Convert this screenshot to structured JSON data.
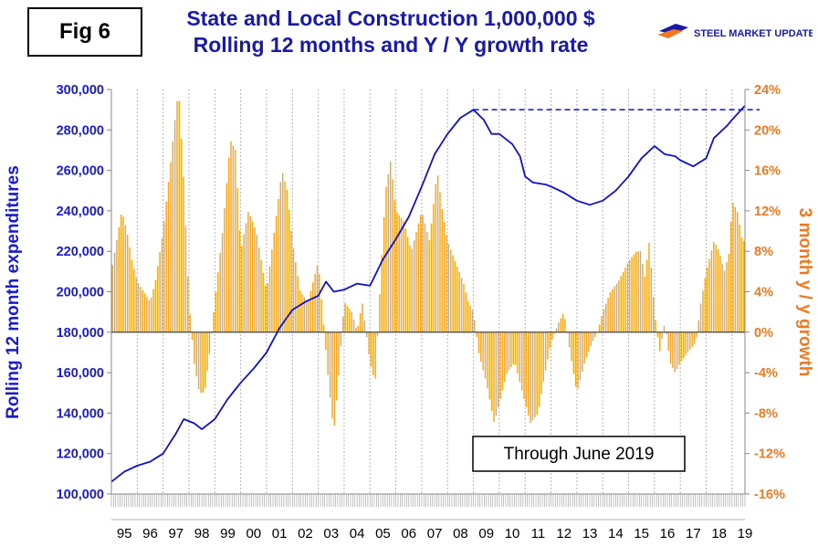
{
  "figure": {
    "label": "Fig 6",
    "title_line1": "State and Local Construction 1,000,000 $",
    "title_line2": "Rolling 12 months and Y / Y growth rate",
    "logo_text": "STEEL MARKET UPDATE",
    "annotation": "Through June 2019"
  },
  "colors": {
    "line": "#1010c8",
    "bars": "#f5a623",
    "left_axis_text": "#1a1ad0",
    "right_axis_text": "#f07820",
    "grid": "#b5b5b5",
    "reference_line": "#1010c8"
  },
  "chart_data": {
    "type": "bar+line",
    "title": "State and Local Construction 1,000,000 $ — Rolling 12 months and Y / Y growth rate",
    "ylabel_left": "Rolling 12 month expenditures",
    "ylabel_right": "3 month y / y growth",
    "ylim_left": [
      100000,
      300000
    ],
    "ylim_right": [
      -16,
      24
    ],
    "yticks_left": [
      "300,000",
      "280,000",
      "260,000",
      "240,000",
      "220,000",
      "200,000",
      "180,000",
      "160,000",
      "140,000",
      "120,000",
      "100,000"
    ],
    "yticks_right": [
      "24%",
      "20%",
      "16%",
      "12%",
      "8%",
      "4%",
      "0%",
      "-4%",
      "-8%",
      "-12%",
      "-16%"
    ],
    "x_range_months": [
      1995.0,
      2019.5
    ],
    "x_tick_labels": [
      "95",
      "96",
      "97",
      "98",
      "99",
      "00",
      "01",
      "02",
      "03",
      "04",
      "05",
      "06",
      "07",
      "08",
      "09",
      "10",
      "11",
      "12",
      "13",
      "14",
      "15",
      "16",
      "17",
      "18",
      "19"
    ],
    "reference_line": {
      "value": 290000,
      "from_year": 2009.0,
      "to_year": 2019.5,
      "style": "dashed"
    },
    "series": [
      {
        "name": "Rolling 12 month expenditures",
        "axis": "left",
        "kind": "line",
        "points": [
          [
            1995.0,
            106000
          ],
          [
            1995.5,
            111000
          ],
          [
            1996.0,
            114000
          ],
          [
            1996.5,
            116000
          ],
          [
            1997.0,
            120000
          ],
          [
            1997.5,
            130000
          ],
          [
            1997.8,
            137000
          ],
          [
            1998.2,
            135000
          ],
          [
            1998.5,
            132000
          ],
          [
            1999.0,
            137000
          ],
          [
            1999.5,
            147000
          ],
          [
            2000.0,
            155000
          ],
          [
            2000.5,
            162000
          ],
          [
            2001.0,
            170000
          ],
          [
            2001.5,
            182000
          ],
          [
            2002.0,
            191000
          ],
          [
            2002.5,
            195000
          ],
          [
            2003.0,
            198000
          ],
          [
            2003.3,
            205000
          ],
          [
            2003.6,
            200000
          ],
          [
            2004.0,
            201000
          ],
          [
            2004.5,
            204000
          ],
          [
            2005.0,
            203000
          ],
          [
            2005.5,
            216000
          ],
          [
            2006.0,
            226000
          ],
          [
            2006.5,
            237000
          ],
          [
            2007.0,
            252000
          ],
          [
            2007.5,
            268000
          ],
          [
            2008.0,
            278000
          ],
          [
            2008.5,
            286000
          ],
          [
            2009.0,
            290000
          ],
          [
            2009.4,
            285000
          ],
          [
            2009.7,
            278000
          ],
          [
            2010.0,
            278000
          ],
          [
            2010.5,
            273000
          ],
          [
            2010.8,
            267000
          ],
          [
            2011.0,
            257000
          ],
          [
            2011.3,
            254000
          ],
          [
            2011.8,
            253000
          ],
          [
            2012.0,
            252000
          ],
          [
            2012.5,
            249000
          ],
          [
            2013.0,
            245000
          ],
          [
            2013.5,
            243000
          ],
          [
            2014.0,
            245000
          ],
          [
            2014.5,
            250000
          ],
          [
            2015.0,
            257000
          ],
          [
            2015.5,
            266000
          ],
          [
            2016.0,
            272000
          ],
          [
            2016.4,
            268000
          ],
          [
            2016.8,
            267000
          ],
          [
            2017.0,
            265000
          ],
          [
            2017.5,
            262000
          ],
          [
            2018.0,
            266000
          ],
          [
            2018.3,
            276000
          ],
          [
            2018.8,
            282000
          ],
          [
            2019.0,
            285000
          ],
          [
            2019.5,
            292000
          ]
        ]
      },
      {
        "name": "3 month y / y growth",
        "axis": "right",
        "kind": "bar",
        "points": [
          [
            1995.0,
            6
          ],
          [
            1995.4,
            12
          ],
          [
            1995.6,
            10
          ],
          [
            1995.8,
            7
          ],
          [
            1996.0,
            5
          ],
          [
            1996.5,
            3
          ],
          [
            1996.7,
            5
          ],
          [
            1997.0,
            10
          ],
          [
            1997.3,
            17
          ],
          [
            1997.5,
            22
          ],
          [
            1997.6,
            24
          ],
          [
            1997.8,
            15
          ],
          [
            1998.0,
            3
          ],
          [
            1998.2,
            -3
          ],
          [
            1998.4,
            -6
          ],
          [
            1998.6,
            -6
          ],
          [
            1998.8,
            -2
          ],
          [
            1999.0,
            3
          ],
          [
            1999.3,
            10
          ],
          [
            1999.6,
            19
          ],
          [
            1999.8,
            18
          ],
          [
            2000.0,
            8
          ],
          [
            2000.3,
            12
          ],
          [
            2000.6,
            10
          ],
          [
            2000.8,
            7
          ],
          [
            2001.0,
            4
          ],
          [
            2001.3,
            10
          ],
          [
            2001.6,
            16
          ],
          [
            2001.8,
            14
          ],
          [
            2002.0,
            9
          ],
          [
            2002.3,
            4
          ],
          [
            2002.6,
            3
          ],
          [
            2003.0,
            7
          ],
          [
            2003.2,
            1
          ],
          [
            2003.4,
            -5
          ],
          [
            2003.6,
            -10
          ],
          [
            2003.8,
            -4
          ],
          [
            2004.0,
            3
          ],
          [
            2004.3,
            2
          ],
          [
            2004.5,
            0
          ],
          [
            2004.7,
            3
          ],
          [
            2005.0,
            -3
          ],
          [
            2005.2,
            -5
          ],
          [
            2005.4,
            5
          ],
          [
            2005.6,
            14
          ],
          [
            2005.8,
            17
          ],
          [
            2006.0,
            12
          ],
          [
            2006.3,
            11
          ],
          [
            2006.6,
            8
          ],
          [
            2006.8,
            10
          ],
          [
            2007.0,
            12
          ],
          [
            2007.3,
            9
          ],
          [
            2007.6,
            16
          ],
          [
            2007.8,
            12
          ],
          [
            2008.0,
            9
          ],
          [
            2008.3,
            7
          ],
          [
            2008.6,
            5
          ],
          [
            2008.8,
            3
          ],
          [
            2009.0,
            2
          ],
          [
            2009.2,
            -2
          ],
          [
            2009.5,
            -5
          ],
          [
            2009.8,
            -9
          ],
          [
            2010.0,
            -7
          ],
          [
            2010.3,
            -4
          ],
          [
            2010.6,
            -3
          ],
          [
            2010.8,
            -5
          ],
          [
            2011.0,
            -7
          ],
          [
            2011.2,
            -9
          ],
          [
            2011.5,
            -8
          ],
          [
            2011.7,
            -5
          ],
          [
            2012.0,
            -1
          ],
          [
            2012.3,
            1
          ],
          [
            2012.5,
            2
          ],
          [
            2012.8,
            -3
          ],
          [
            2013.0,
            -6
          ],
          [
            2013.3,
            -3
          ],
          [
            2013.6,
            -1
          ],
          [
            2013.8,
            0
          ],
          [
            2014.0,
            2
          ],
          [
            2014.3,
            4
          ],
          [
            2014.6,
            5
          ],
          [
            2014.8,
            6
          ],
          [
            2015.0,
            7
          ],
          [
            2015.3,
            8
          ],
          [
            2015.5,
            8
          ],
          [
            2015.6,
            5
          ],
          [
            2015.8,
            9
          ],
          [
            2016.0,
            2
          ],
          [
            2016.2,
            -2
          ],
          [
            2016.4,
            1
          ],
          [
            2016.6,
            -3
          ],
          [
            2016.8,
            -4
          ],
          [
            2017.0,
            -3
          ],
          [
            2017.3,
            -2
          ],
          [
            2017.6,
            -1
          ],
          [
            2017.8,
            3
          ],
          [
            2018.0,
            6
          ],
          [
            2018.3,
            9
          ],
          [
            2018.5,
            8
          ],
          [
            2018.7,
            6
          ],
          [
            2018.9,
            8
          ],
          [
            2019.0,
            13
          ],
          [
            2019.2,
            12
          ],
          [
            2019.4,
            9
          ]
        ]
      }
    ]
  }
}
